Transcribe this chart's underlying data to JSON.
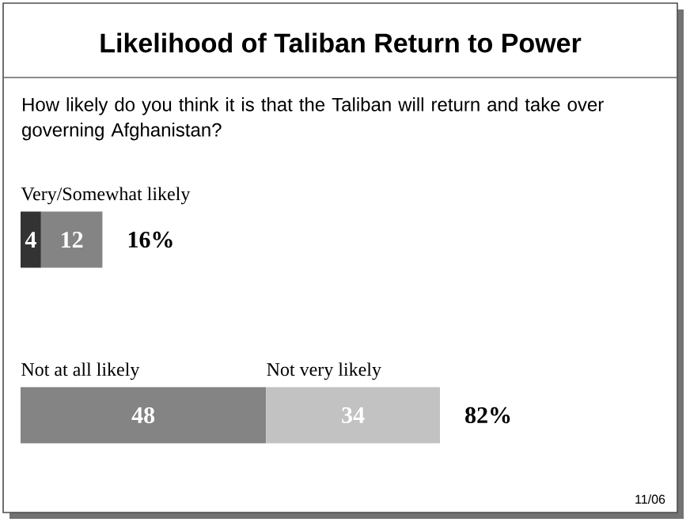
{
  "chart_data": {
    "type": "bar",
    "orientation": "horizontal",
    "stacked": true,
    "title": "Likelihood of Taliban Return to Power",
    "subtitle": "How likely do you think it is that the Taliban will return and take over governing Afghanistan?",
    "categories": [
      null,
      null
    ],
    "series": [
      {
        "color": "#333333",
        "values": [
          4,
          null
        ],
        "value_labels": [
          "4",
          null
        ]
      },
      {
        "color": "#848484",
        "values": [
          12,
          48
        ],
        "value_labels": [
          "12",
          "48"
        ]
      },
      {
        "color": "#c2c2c2",
        "values": [
          null,
          34
        ],
        "value_labels": [
          null,
          "34"
        ]
      }
    ],
    "totals": [
      "16%",
      "82%"
    ],
    "annotations": [
      "Very/Somewhat likely",
      "Not at all likely",
      "Not very likely",
      "11/06"
    ]
  }
}
